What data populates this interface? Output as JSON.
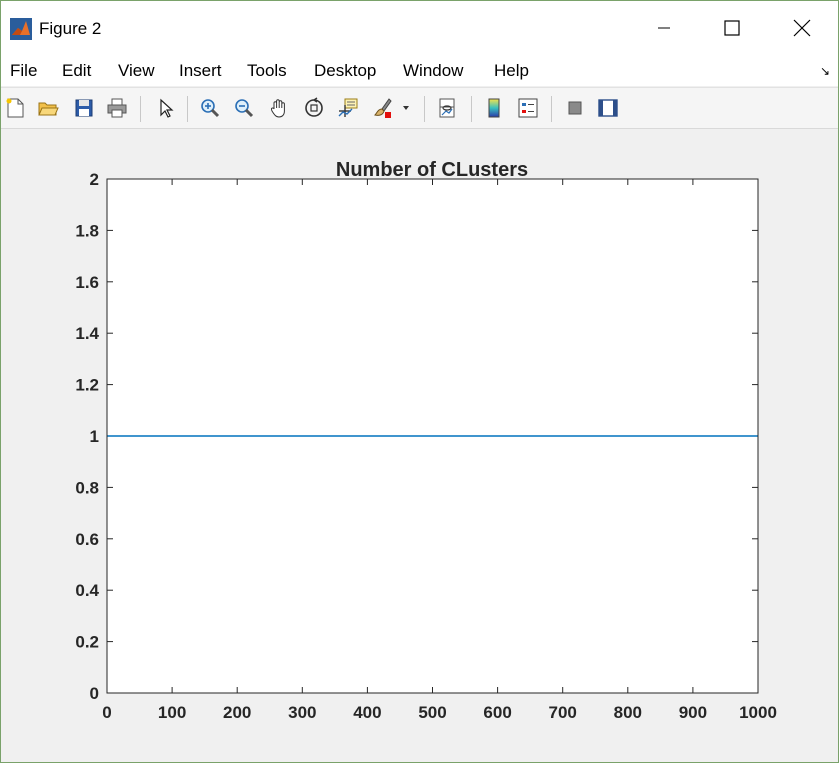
{
  "window": {
    "title": "Figure 2",
    "app_icon": "matlab-logo-icon",
    "controls": [
      "minimize-icon",
      "maximize-icon",
      "close-icon"
    ]
  },
  "menu": {
    "items": [
      "File",
      "Edit",
      "View",
      "Insert",
      "Tools",
      "Desktop",
      "Window",
      "Help"
    ],
    "overflow_icon": "dock-arrow-icon"
  },
  "toolbar": {
    "icons": [
      "new-figure-icon",
      "open-file-icon",
      "save-icon",
      "print-icon",
      "select-arrow-icon",
      "zoom-in-icon",
      "zoom-out-icon",
      "pan-hand-icon",
      "rotate-3d-icon",
      "data-cursor-icon",
      "brush-icon",
      "brush-dropdown-icon",
      "link-plot-icon",
      "colorbar-icon",
      "legend-icon",
      "hide-plot-tools-icon",
      "show-plot-tools-icon"
    ]
  },
  "chart_data": {
    "type": "line",
    "title": "Number of CLusters",
    "xlabel": "",
    "ylabel": "",
    "xlim": [
      0,
      1000
    ],
    "ylim": [
      0,
      2
    ],
    "x_ticks": [
      "0",
      "100",
      "200",
      "300",
      "400",
      "500",
      "600",
      "700",
      "800",
      "900",
      "1000"
    ],
    "y_ticks": [
      "0",
      "0.2",
      "0.4",
      "0.6",
      "0.8",
      "1",
      "1.2",
      "1.4",
      "1.6",
      "1.8",
      "2"
    ],
    "grid": false,
    "series": [
      {
        "x": [
          0,
          1000
        ],
        "values": [
          1,
          1
        ],
        "color": "#0072bd"
      }
    ]
  }
}
